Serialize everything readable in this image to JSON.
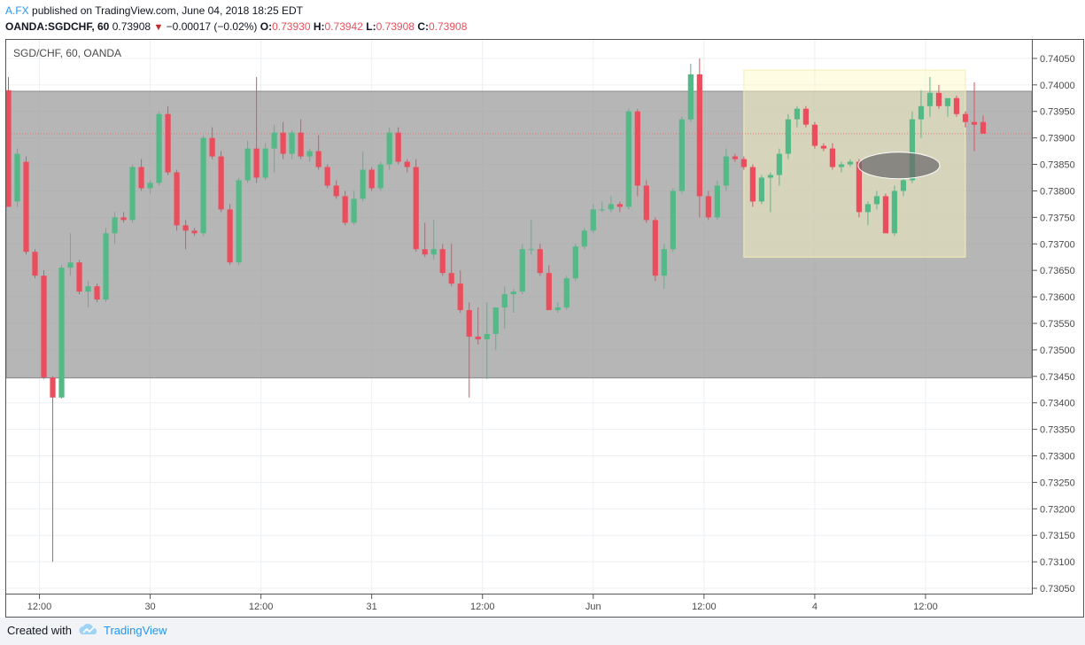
{
  "header": {
    "author": "A.FX",
    "published": "published on TradingView.com, June 04, 2018 18:25 EDT",
    "symbol_line": "OANDA:SGDCHF, 60",
    "last": "0.73908",
    "arrow": "▼",
    "change": "−0.00017 (−0.02%)",
    "o_label": "O:",
    "o_value": "0.73930",
    "h_label": "H:",
    "h_value": "0.73942",
    "l_label": "L:",
    "l_value": "0.73908",
    "c_label": "C:",
    "c_value": "0.73908"
  },
  "legend": {
    "symbol": "SGD/CHF, 60, OANDA"
  },
  "footer": {
    "created": "Created with",
    "brand": "TradingView"
  },
  "chart_data": {
    "type": "candlestick",
    "title": "",
    "y_axis_side": "right",
    "ylim": [
      0.7304,
      0.74085
    ],
    "y_ticks": [
      "0.74050",
      "0.74000",
      "0.73950",
      "0.73900",
      "0.73850",
      "0.73800",
      "0.73750",
      "0.73700",
      "0.73650",
      "0.73600",
      "0.73550",
      "0.73500",
      "0.73450",
      "0.73400",
      "0.73350",
      "0.73300",
      "0.73250",
      "0.73200",
      "0.73150",
      "0.73100",
      "0.73050"
    ],
    "x_tick_labels": [
      {
        "bar": 3.5,
        "label": "12:00"
      },
      {
        "bar": 16,
        "label": "30"
      },
      {
        "bar": 28.5,
        "label": "12:00"
      },
      {
        "bar": 41,
        "label": "31"
      },
      {
        "bar": 53.5,
        "label": "12:00"
      },
      {
        "bar": 66,
        "label": "Jun"
      },
      {
        "bar": 78.5,
        "label": "12:00"
      },
      {
        "bar": 91,
        "label": "4"
      },
      {
        "bar": 103.5,
        "label": "12:00"
      }
    ],
    "bar_range": [
      -0.25,
      115.5
    ],
    "candles": [
      {
        "o": 0.7399,
        "h": 0.74015,
        "l": 0.7377,
        "c": 0.7377
      },
      {
        "o": 0.7378,
        "h": 0.7388,
        "l": 0.7377,
        "c": 0.7387
      },
      {
        "o": 0.73855,
        "h": 0.73865,
        "l": 0.7368,
        "c": 0.73685
      },
      {
        "o": 0.73685,
        "h": 0.7369,
        "l": 0.73635,
        "c": 0.7364
      },
      {
        "o": 0.7364,
        "h": 0.7365,
        "l": 0.73445,
        "c": 0.73448
      },
      {
        "o": 0.73448,
        "h": 0.7345,
        "l": 0.731,
        "c": 0.7341
      },
      {
        "o": 0.7341,
        "h": 0.7366,
        "l": 0.73408,
        "c": 0.73655
      },
      {
        "o": 0.73655,
        "h": 0.7372,
        "l": 0.7364,
        "c": 0.73665
      },
      {
        "o": 0.73665,
        "h": 0.7367,
        "l": 0.73605,
        "c": 0.7361
      },
      {
        "o": 0.7361,
        "h": 0.7363,
        "l": 0.7358,
        "c": 0.7362
      },
      {
        "o": 0.7362,
        "h": 0.73625,
        "l": 0.7359,
        "c": 0.73595
      },
      {
        "o": 0.73595,
        "h": 0.7373,
        "l": 0.7359,
        "c": 0.7372
      },
      {
        "o": 0.7372,
        "h": 0.7376,
        "l": 0.737,
        "c": 0.7375
      },
      {
        "o": 0.7375,
        "h": 0.7376,
        "l": 0.7374,
        "c": 0.73745
      },
      {
        "o": 0.73745,
        "h": 0.7385,
        "l": 0.7374,
        "c": 0.73845
      },
      {
        "o": 0.73845,
        "h": 0.7386,
        "l": 0.738,
        "c": 0.73805
      },
      {
        "o": 0.73805,
        "h": 0.7382,
        "l": 0.73795,
        "c": 0.73815
      },
      {
        "o": 0.73815,
        "h": 0.7395,
        "l": 0.7381,
        "c": 0.73945
      },
      {
        "o": 0.73945,
        "h": 0.7396,
        "l": 0.7383,
        "c": 0.73835
      },
      {
        "o": 0.73835,
        "h": 0.7384,
        "l": 0.73725,
        "c": 0.73735
      },
      {
        "o": 0.73735,
        "h": 0.73745,
        "l": 0.7369,
        "c": 0.73725
      },
      {
        "o": 0.73725,
        "h": 0.7373,
        "l": 0.73715,
        "c": 0.7372
      },
      {
        "o": 0.7372,
        "h": 0.73905,
        "l": 0.73715,
        "c": 0.739
      },
      {
        "o": 0.739,
        "h": 0.7392,
        "l": 0.7386,
        "c": 0.73865
      },
      {
        "o": 0.73865,
        "h": 0.73875,
        "l": 0.7376,
        "c": 0.73765
      },
      {
        "o": 0.73765,
        "h": 0.73775,
        "l": 0.7366,
        "c": 0.73665
      },
      {
        "o": 0.73665,
        "h": 0.73825,
        "l": 0.7366,
        "c": 0.7382
      },
      {
        "o": 0.7382,
        "h": 0.73895,
        "l": 0.73815,
        "c": 0.7388
      },
      {
        "o": 0.7388,
        "h": 0.74015,
        "l": 0.73815,
        "c": 0.73825
      },
      {
        "o": 0.73825,
        "h": 0.7389,
        "l": 0.7382,
        "c": 0.7388
      },
      {
        "o": 0.7388,
        "h": 0.73925,
        "l": 0.73835,
        "c": 0.7391
      },
      {
        "o": 0.7391,
        "h": 0.7393,
        "l": 0.7386,
        "c": 0.7387
      },
      {
        "o": 0.7387,
        "h": 0.73915,
        "l": 0.7386,
        "c": 0.7391
      },
      {
        "o": 0.7391,
        "h": 0.73935,
        "l": 0.7386,
        "c": 0.73865
      },
      {
        "o": 0.73865,
        "h": 0.7388,
        "l": 0.73855,
        "c": 0.73875
      },
      {
        "o": 0.73875,
        "h": 0.73905,
        "l": 0.7384,
        "c": 0.73845
      },
      {
        "o": 0.73845,
        "h": 0.7385,
        "l": 0.73805,
        "c": 0.7381
      },
      {
        "o": 0.7381,
        "h": 0.7382,
        "l": 0.73785,
        "c": 0.7379
      },
      {
        "o": 0.7379,
        "h": 0.738,
        "l": 0.73735,
        "c": 0.7374
      },
      {
        "o": 0.7374,
        "h": 0.738,
        "l": 0.73735,
        "c": 0.73785
      },
      {
        "o": 0.73785,
        "h": 0.73875,
        "l": 0.7378,
        "c": 0.7384
      },
      {
        "o": 0.7384,
        "h": 0.73845,
        "l": 0.738,
        "c": 0.73805
      },
      {
        "o": 0.73805,
        "h": 0.73855,
        "l": 0.738,
        "c": 0.7385
      },
      {
        "o": 0.7385,
        "h": 0.7392,
        "l": 0.7384,
        "c": 0.7391
      },
      {
        "o": 0.7391,
        "h": 0.7392,
        "l": 0.7385,
        "c": 0.73855
      },
      {
        "o": 0.73855,
        "h": 0.7386,
        "l": 0.73835,
        "c": 0.73845
      },
      {
        "o": 0.73845,
        "h": 0.7386,
        "l": 0.73685,
        "c": 0.7369
      },
      {
        "o": 0.7369,
        "h": 0.7374,
        "l": 0.73675,
        "c": 0.7368
      },
      {
        "o": 0.7368,
        "h": 0.73745,
        "l": 0.7367,
        "c": 0.7369
      },
      {
        "o": 0.7369,
        "h": 0.737,
        "l": 0.7364,
        "c": 0.73645
      },
      {
        "o": 0.73645,
        "h": 0.737,
        "l": 0.7362,
        "c": 0.73625
      },
      {
        "o": 0.73625,
        "h": 0.7365,
        "l": 0.7357,
        "c": 0.73575
      },
      {
        "o": 0.73575,
        "h": 0.7359,
        "l": 0.7341,
        "c": 0.73525
      },
      {
        "o": 0.73525,
        "h": 0.7358,
        "l": 0.7351,
        "c": 0.7352
      },
      {
        "o": 0.7352,
        "h": 0.7359,
        "l": 0.73445,
        "c": 0.7353
      },
      {
        "o": 0.7353,
        "h": 0.7358,
        "l": 0.735,
        "c": 0.7358
      },
      {
        "o": 0.7358,
        "h": 0.7362,
        "l": 0.7354,
        "c": 0.73605
      },
      {
        "o": 0.73605,
        "h": 0.73615,
        "l": 0.7357,
        "c": 0.7361
      },
      {
        "o": 0.7361,
        "h": 0.737,
        "l": 0.73605,
        "c": 0.7369
      },
      {
        "o": 0.7369,
        "h": 0.73745,
        "l": 0.7368,
        "c": 0.7369
      },
      {
        "o": 0.7369,
        "h": 0.737,
        "l": 0.7364,
        "c": 0.73645
      },
      {
        "o": 0.73645,
        "h": 0.7366,
        "l": 0.73575,
        "c": 0.73575
      },
      {
        "o": 0.73575,
        "h": 0.7359,
        "l": 0.7357,
        "c": 0.7358
      },
      {
        "o": 0.7358,
        "h": 0.7364,
        "l": 0.73575,
        "c": 0.73635
      },
      {
        "o": 0.73635,
        "h": 0.737,
        "l": 0.7363,
        "c": 0.73695
      },
      {
        "o": 0.73695,
        "h": 0.7373,
        "l": 0.7369,
        "c": 0.73725
      },
      {
        "o": 0.73725,
        "h": 0.73775,
        "l": 0.7372,
        "c": 0.73765
      },
      {
        "o": 0.73765,
        "h": 0.7378,
        "l": 0.7376,
        "c": 0.73765
      },
      {
        "o": 0.73765,
        "h": 0.7379,
        "l": 0.7376,
        "c": 0.73775
      },
      {
        "o": 0.73775,
        "h": 0.7378,
        "l": 0.7376,
        "c": 0.7377
      },
      {
        "o": 0.7377,
        "h": 0.73955,
        "l": 0.73765,
        "c": 0.7395
      },
      {
        "o": 0.7395,
        "h": 0.73955,
        "l": 0.7379,
        "c": 0.7381
      },
      {
        "o": 0.7381,
        "h": 0.7382,
        "l": 0.7374,
        "c": 0.73745
      },
      {
        "o": 0.73745,
        "h": 0.7375,
        "l": 0.7363,
        "c": 0.7364
      },
      {
        "o": 0.7364,
        "h": 0.737,
        "l": 0.73615,
        "c": 0.7369
      },
      {
        "o": 0.7369,
        "h": 0.73805,
        "l": 0.73685,
        "c": 0.738
      },
      {
        "o": 0.738,
        "h": 0.7394,
        "l": 0.73795,
        "c": 0.73935
      },
      {
        "o": 0.73935,
        "h": 0.7404,
        "l": 0.7393,
        "c": 0.7402
      },
      {
        "o": 0.7402,
        "h": 0.7405,
        "l": 0.7375,
        "c": 0.7379
      },
      {
        "o": 0.7379,
        "h": 0.738,
        "l": 0.73745,
        "c": 0.7375
      },
      {
        "o": 0.7375,
        "h": 0.7382,
        "l": 0.73745,
        "c": 0.7381
      },
      {
        "o": 0.7381,
        "h": 0.7388,
        "l": 0.738,
        "c": 0.73865
      },
      {
        "o": 0.73865,
        "h": 0.7387,
        "l": 0.73855,
        "c": 0.7386
      },
      {
        "o": 0.7386,
        "h": 0.73865,
        "l": 0.7384,
        "c": 0.73845
      },
      {
        "o": 0.73845,
        "h": 0.7385,
        "l": 0.7377,
        "c": 0.7378
      },
      {
        "o": 0.7378,
        "h": 0.7383,
        "l": 0.73775,
        "c": 0.73825
      },
      {
        "o": 0.73825,
        "h": 0.73835,
        "l": 0.7376,
        "c": 0.7383
      },
      {
        "o": 0.7383,
        "h": 0.7388,
        "l": 0.7381,
        "c": 0.7387
      },
      {
        "o": 0.7387,
        "h": 0.73945,
        "l": 0.7386,
        "c": 0.73935
      },
      {
        "o": 0.73935,
        "h": 0.7396,
        "l": 0.7392,
        "c": 0.73955
      },
      {
        "o": 0.73955,
        "h": 0.7396,
        "l": 0.7392,
        "c": 0.73925
      },
      {
        "o": 0.73925,
        "h": 0.7393,
        "l": 0.7388,
        "c": 0.73885
      },
      {
        "o": 0.73885,
        "h": 0.7389,
        "l": 0.73875,
        "c": 0.7388
      },
      {
        "o": 0.7388,
        "h": 0.7389,
        "l": 0.7384,
        "c": 0.73845
      },
      {
        "o": 0.73845,
        "h": 0.73855,
        "l": 0.73835,
        "c": 0.7385
      },
      {
        "o": 0.7385,
        "h": 0.7386,
        "l": 0.73845,
        "c": 0.73855
      },
      {
        "o": 0.73855,
        "h": 0.7386,
        "l": 0.7375,
        "c": 0.7376
      },
      {
        "o": 0.7376,
        "h": 0.7378,
        "l": 0.73735,
        "c": 0.73775
      },
      {
        "o": 0.73775,
        "h": 0.738,
        "l": 0.73765,
        "c": 0.7379
      },
      {
        "o": 0.7379,
        "h": 0.73795,
        "l": 0.7372,
        "c": 0.7372
      },
      {
        "o": 0.7372,
        "h": 0.7381,
        "l": 0.73715,
        "c": 0.738
      },
      {
        "o": 0.738,
        "h": 0.73825,
        "l": 0.7379,
        "c": 0.7382
      },
      {
        "o": 0.7382,
        "h": 0.7395,
        "l": 0.73815,
        "c": 0.73935
      },
      {
        "o": 0.73935,
        "h": 0.7399,
        "l": 0.739,
        "c": 0.7396
      },
      {
        "o": 0.7396,
        "h": 0.74015,
        "l": 0.7394,
        "c": 0.73985
      },
      {
        "o": 0.73985,
        "h": 0.74,
        "l": 0.73955,
        "c": 0.7396
      },
      {
        "o": 0.7396,
        "h": 0.73975,
        "l": 0.7394,
        "c": 0.73975
      },
      {
        "o": 0.73975,
        "h": 0.7398,
        "l": 0.7394,
        "c": 0.73945
      },
      {
        "o": 0.73945,
        "h": 0.7395,
        "l": 0.7392,
        "c": 0.7393
      },
      {
        "o": 0.7393,
        "h": 0.74005,
        "l": 0.73875,
        "c": 0.73925
      },
      {
        "o": 0.7393,
        "h": 0.73942,
        "l": 0.73908,
        "c": 0.73908
      }
    ],
    "annotations": {
      "range_box": {
        "y_top": 0.73988,
        "y_bottom": 0.73447,
        "bar_from": -1,
        "bar_to": 115.5,
        "color": "#9e9e9e"
      },
      "highlight_box": {
        "y_top": 0.74028,
        "y_bottom": 0.73675,
        "bar_from": 83,
        "bar_to": 108,
        "color": "#fff9c4"
      },
      "ellipse": {
        "center_bar": 100.5,
        "center_y": 0.73848,
        "rx_bars": 4.6,
        "ry_price": 0.00025,
        "color": "#6d6d6d"
      },
      "last_price_line": 0.73908
    },
    "grid": true,
    "colors": {
      "up": "#53b987",
      "down": "#eb4d5c",
      "last_price": "#e57373",
      "grid": "#eceff2"
    }
  }
}
